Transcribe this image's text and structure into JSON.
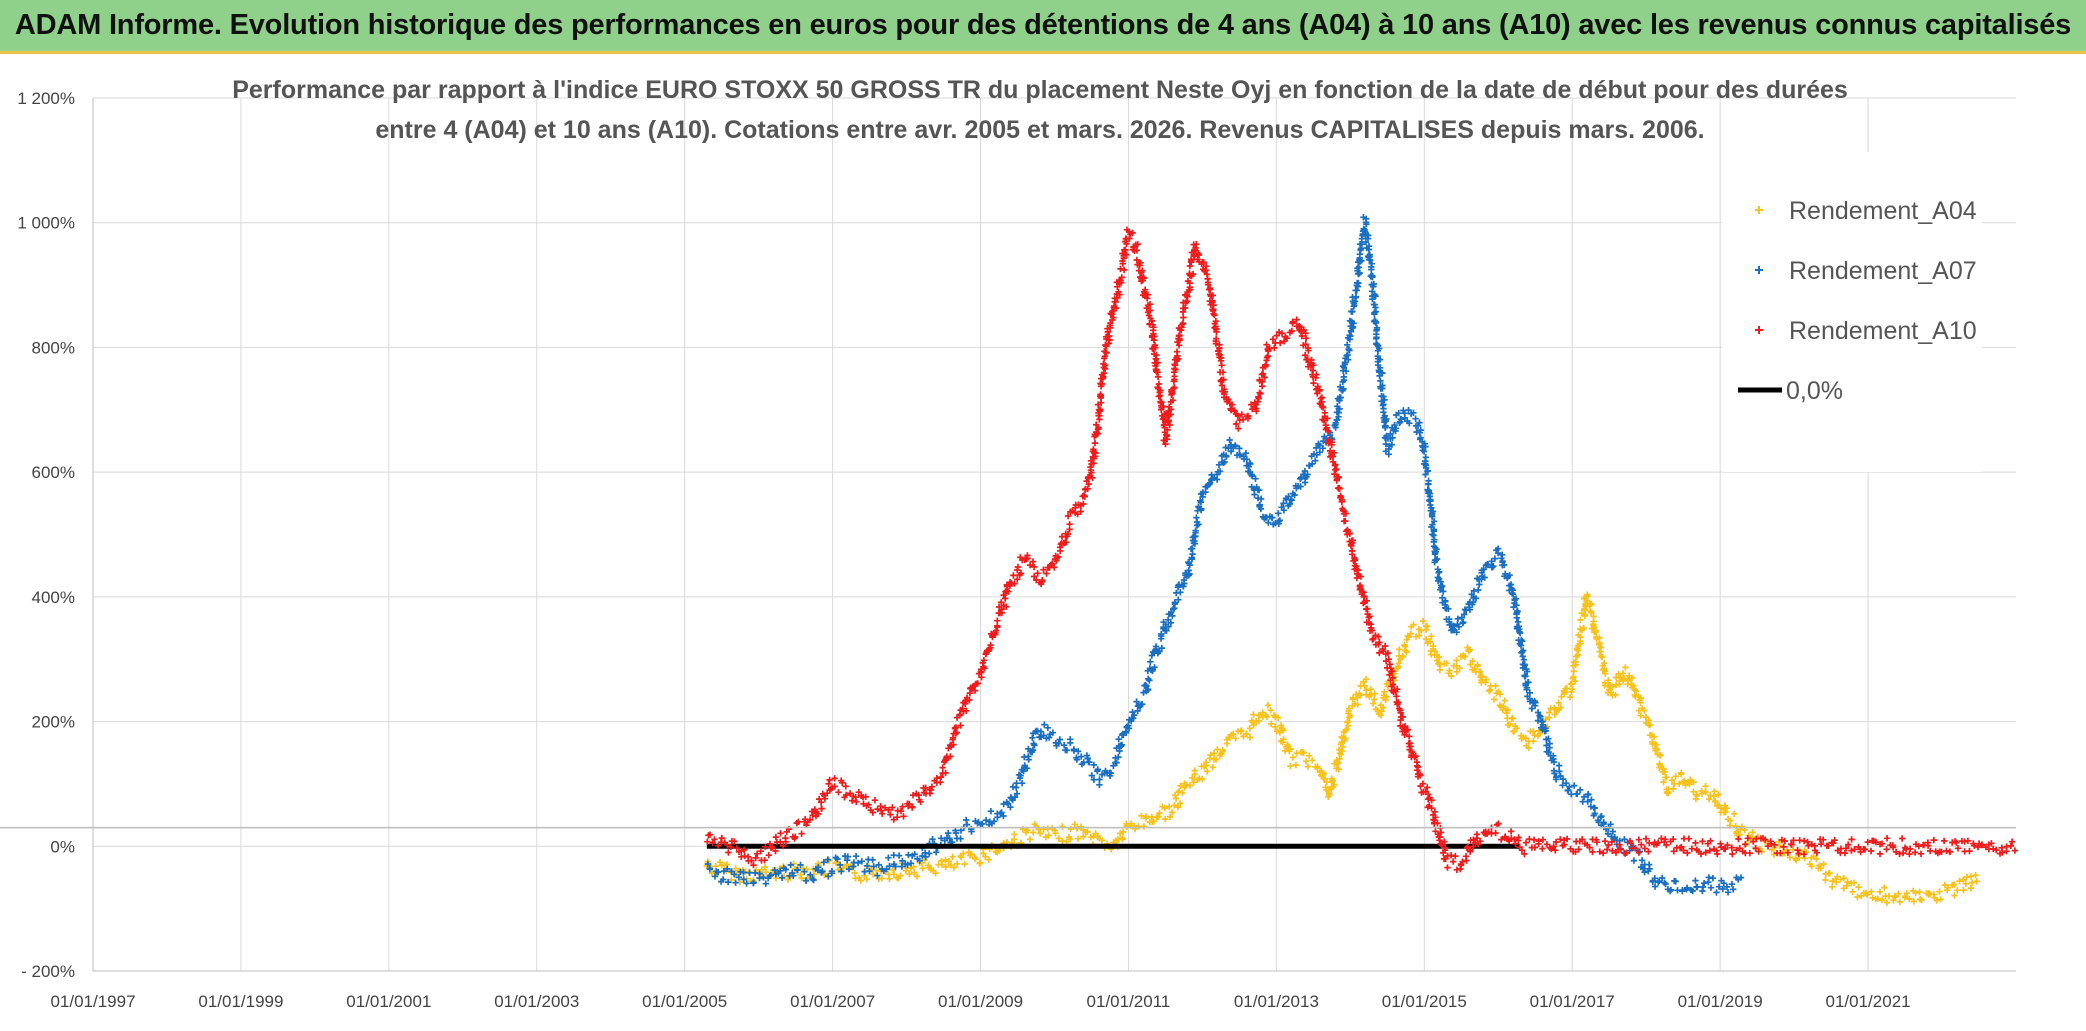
{
  "banner": {
    "title": "ADAM Informe. Evolution historique des performances en euros pour des détentions de 4 ans (A04) à 10 ans (A10) avec les revenus connus capitalisés"
  },
  "colors": {
    "banner_bg": "#8fd18a",
    "A04": "#f7c21b",
    "A07": "#1a6fc1",
    "A10": "#ee1c1c",
    "zero": "#000000"
  },
  "chart_data": {
    "type": "scatter",
    "title_lines": [
      "Performance par rapport à l'indice EURO STOXX 50 GROSS TR  du placement Neste Oyj en fonction de la date de début pour des durées",
      "entre 4 (A04) et 10 ans (A10). Cotations entre avr. 2005 et mars. 2026. Revenus CAPITALISES depuis mars. 2006."
    ],
    "xlabel": "",
    "ylabel": "",
    "x_range": [
      1997.0,
      2023.0
    ],
    "ylim": [
      -200,
      1200
    ],
    "y_ticks": [
      -200,
      0,
      200,
      400,
      600,
      800,
      1000,
      1200
    ],
    "y_tick_labels": [
      "- 200%",
      "0%",
      "200%",
      "400%",
      "600%",
      "800%",
      "1 000%",
      "1 200%"
    ],
    "x_ticks": [
      1997,
      1999,
      2001,
      2003,
      2005,
      2007,
      2009,
      2011,
      2013,
      2015,
      2017,
      2019,
      2021
    ],
    "x_tick_labels": [
      "01/01/1997",
      "01/01/1999",
      "01/01/2001",
      "01/01/2003",
      "01/01/2005",
      "01/01/2007",
      "01/01/2009",
      "01/01/2011",
      "01/01/2013",
      "01/01/2015",
      "01/01/2017",
      "01/01/2019",
      "01/01/2021"
    ],
    "legend_position": "top-right",
    "series": [
      {
        "name": "Rendement_A04",
        "color": "#f7c21b",
        "points": [
          [
            2005.3,
            -30
          ],
          [
            2005.7,
            -45
          ],
          [
            2006.0,
            -45
          ],
          [
            2006.5,
            -40
          ],
          [
            2007.0,
            -35
          ],
          [
            2007.3,
            -45
          ],
          [
            2007.8,
            -40
          ],
          [
            2008.2,
            -35
          ],
          [
            2008.6,
            -30
          ],
          [
            2009.0,
            -15
          ],
          [
            2009.4,
            5
          ],
          [
            2009.7,
            25
          ],
          [
            2010.0,
            15
          ],
          [
            2010.3,
            25
          ],
          [
            2010.6,
            10
          ],
          [
            2010.8,
            0
          ],
          [
            2011.0,
            30
          ],
          [
            2011.3,
            45
          ],
          [
            2011.6,
            60
          ],
          [
            2011.8,
            100
          ],
          [
            2012.0,
            120
          ],
          [
            2012.2,
            150
          ],
          [
            2012.4,
            170
          ],
          [
            2012.6,
            180
          ],
          [
            2012.8,
            220
          ],
          [
            2013.0,
            200
          ],
          [
            2013.2,
            140
          ],
          [
            2013.4,
            140
          ],
          [
            2013.6,
            130
          ],
          [
            2013.7,
            80
          ],
          [
            2013.85,
            140
          ],
          [
            2014.0,
            220
          ],
          [
            2014.2,
            260
          ],
          [
            2014.4,
            220
          ],
          [
            2014.6,
            280
          ],
          [
            2014.8,
            340
          ],
          [
            2015.0,
            350
          ],
          [
            2015.2,
            290
          ],
          [
            2015.4,
            280
          ],
          [
            2015.6,
            310
          ],
          [
            2015.8,
            260
          ],
          [
            2016.0,
            240
          ],
          [
            2016.2,
            190
          ],
          [
            2016.4,
            170
          ],
          [
            2016.6,
            190
          ],
          [
            2016.8,
            220
          ],
          [
            2017.0,
            260
          ],
          [
            2017.1,
            330
          ],
          [
            2017.2,
            400
          ],
          [
            2017.35,
            330
          ],
          [
            2017.5,
            240
          ],
          [
            2017.7,
            280
          ],
          [
            2017.9,
            230
          ],
          [
            2018.1,
            170
          ],
          [
            2018.3,
            90
          ],
          [
            2018.5,
            110
          ],
          [
            2018.7,
            80
          ],
          [
            2018.9,
            90
          ],
          [
            2019.1,
            50
          ],
          [
            2019.3,
            20
          ],
          [
            2019.6,
            0
          ],
          [
            2020.0,
            -10
          ],
          [
            2020.3,
            -30
          ],
          [
            2020.6,
            -60
          ],
          [
            2021.0,
            -75
          ],
          [
            2021.3,
            -80
          ],
          [
            2021.6,
            -85
          ],
          [
            2022.0,
            -75
          ],
          [
            2022.3,
            -65
          ],
          [
            2022.5,
            -50
          ]
        ]
      },
      {
        "name": "Rendement_A07",
        "color": "#1a6fc1",
        "points": [
          [
            2005.3,
            -40
          ],
          [
            2005.6,
            -50
          ],
          [
            2006.0,
            -50
          ],
          [
            2006.4,
            -40
          ],
          [
            2006.8,
            -45
          ],
          [
            2007.0,
            -30
          ],
          [
            2007.3,
            -25
          ],
          [
            2007.6,
            -35
          ],
          [
            2007.9,
            -25
          ],
          [
            2008.2,
            -10
          ],
          [
            2008.5,
            10
          ],
          [
            2008.8,
            30
          ],
          [
            2009.1,
            40
          ],
          [
            2009.4,
            70
          ],
          [
            2009.6,
            130
          ],
          [
            2009.8,
            190
          ],
          [
            2010.0,
            170
          ],
          [
            2010.2,
            160
          ],
          [
            2010.4,
            140
          ],
          [
            2010.6,
            110
          ],
          [
            2010.8,
            130
          ],
          [
            2011.0,
            200
          ],
          [
            2011.2,
            240
          ],
          [
            2011.4,
            320
          ],
          [
            2011.6,
            380
          ],
          [
            2011.8,
            440
          ],
          [
            2012.0,
            560
          ],
          [
            2012.2,
            600
          ],
          [
            2012.4,
            650
          ],
          [
            2012.6,
            620
          ],
          [
            2012.8,
            540
          ],
          [
            2013.0,
            520
          ],
          [
            2013.2,
            560
          ],
          [
            2013.4,
            600
          ],
          [
            2013.6,
            640
          ],
          [
            2013.8,
            670
          ],
          [
            2014.0,
            820
          ],
          [
            2014.1,
            920
          ],
          [
            2014.2,
            1000
          ],
          [
            2014.3,
            900
          ],
          [
            2014.5,
            640
          ],
          [
            2014.7,
            700
          ],
          [
            2014.9,
            680
          ],
          [
            2015.0,
            640
          ],
          [
            2015.2,
            420
          ],
          [
            2015.4,
            340
          ],
          [
            2015.6,
            380
          ],
          [
            2015.8,
            440
          ],
          [
            2016.0,
            470
          ],
          [
            2016.2,
            410
          ],
          [
            2016.4,
            250
          ],
          [
            2016.6,
            190
          ],
          [
            2016.8,
            120
          ],
          [
            2017.0,
            90
          ],
          [
            2017.2,
            80
          ],
          [
            2017.4,
            40
          ],
          [
            2017.6,
            10
          ],
          [
            2017.9,
            -20
          ],
          [
            2018.2,
            -60
          ],
          [
            2018.5,
            -70
          ],
          [
            2018.8,
            -60
          ],
          [
            2019.0,
            -65
          ],
          [
            2019.3,
            -55
          ]
        ]
      },
      {
        "name": "Rendement_A10",
        "color": "#ee1c1c",
        "points": [
          [
            2005.3,
            10
          ],
          [
            2005.6,
            0
          ],
          [
            2005.9,
            -20
          ],
          [
            2006.1,
            -10
          ],
          [
            2006.4,
            20
          ],
          [
            2006.7,
            40
          ],
          [
            2007.0,
            100
          ],
          [
            2007.3,
            80
          ],
          [
            2007.6,
            60
          ],
          [
            2007.9,
            50
          ],
          [
            2008.2,
            80
          ],
          [
            2008.5,
            120
          ],
          [
            2008.7,
            200
          ],
          [
            2009.0,
            280
          ],
          [
            2009.2,
            350
          ],
          [
            2009.4,
            420
          ],
          [
            2009.6,
            460
          ],
          [
            2009.8,
            430
          ],
          [
            2010.0,
            450
          ],
          [
            2010.2,
            520
          ],
          [
            2010.4,
            560
          ],
          [
            2010.5,
            600
          ],
          [
            2010.7,
            800
          ],
          [
            2010.9,
            920
          ],
          [
            2011.0,
            980
          ],
          [
            2011.1,
            960
          ],
          [
            2011.3,
            850
          ],
          [
            2011.5,
            650
          ],
          [
            2011.7,
            820
          ],
          [
            2011.9,
            960
          ],
          [
            2012.1,
            900
          ],
          [
            2012.3,
            720
          ],
          [
            2012.5,
            680
          ],
          [
            2012.7,
            700
          ],
          [
            2012.9,
            800
          ],
          [
            2013.1,
            820
          ],
          [
            2013.3,
            840
          ],
          [
            2013.5,
            760
          ],
          [
            2013.7,
            660
          ],
          [
            2013.9,
            540
          ],
          [
            2014.1,
            440
          ],
          [
            2014.3,
            340
          ],
          [
            2014.5,
            300
          ],
          [
            2014.7,
            200
          ],
          [
            2014.9,
            120
          ],
          [
            2015.1,
            60
          ],
          [
            2015.3,
            -20
          ],
          [
            2015.5,
            -30
          ],
          [
            2015.7,
            10
          ],
          [
            2015.9,
            30
          ],
          [
            2016.1,
            20
          ],
          [
            2016.3,
            0
          ],
          [
            2017.0,
            0
          ],
          [
            2018.0,
            0
          ],
          [
            2019.0,
            0
          ],
          [
            2020.0,
            0
          ],
          [
            2021.0,
            0
          ],
          [
            2022.0,
            0
          ],
          [
            2023.0,
            0
          ]
        ]
      },
      {
        "name": "0,0%",
        "color": "#000000",
        "points": [
          [
            2005.3,
            0
          ],
          [
            2016.3,
            0
          ]
        ]
      }
    ],
    "legend_labels": [
      "Rendement_A04",
      "Rendement_A07",
      "Rendement_A10",
      "0,0%"
    ]
  }
}
